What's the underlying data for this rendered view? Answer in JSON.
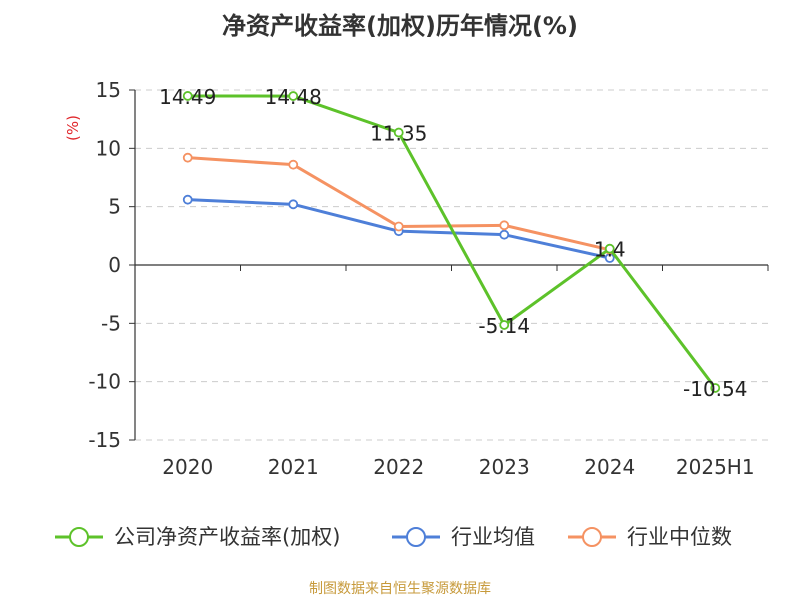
{
  "chart_data": {
    "type": "line",
    "title": "净资产收益率(加权)历年情况(%)",
    "ylabel": "(%)",
    "ylim": [
      -15,
      15
    ],
    "yticks": [
      -15,
      -10,
      -5,
      0,
      5,
      10,
      15
    ],
    "grid": true,
    "legend_position": "bottom",
    "categories": [
      "2020",
      "2021",
      "2022",
      "2023",
      "2024",
      "2025H1"
    ],
    "series": [
      {
        "name": "公司净资产收益率(加权)",
        "color": "#5dc22a",
        "values": [
          14.49,
          14.48,
          11.35,
          -5.14,
          1.4,
          -10.54
        ],
        "labels": [
          "14.49",
          "14.48",
          "11.35",
          "-5.14",
          "1.4",
          "-10.54"
        ]
      },
      {
        "name": "行业均值",
        "color": "#4e7fd8",
        "values": [
          5.6,
          5.2,
          2.9,
          2.6,
          0.6,
          null
        ]
      },
      {
        "name": "行业中位数",
        "color": "#f59262",
        "values": [
          9.2,
          8.6,
          3.3,
          3.4,
          1.3,
          null
        ]
      }
    ]
  },
  "source": "制图数据来自恒生聚源数据库"
}
